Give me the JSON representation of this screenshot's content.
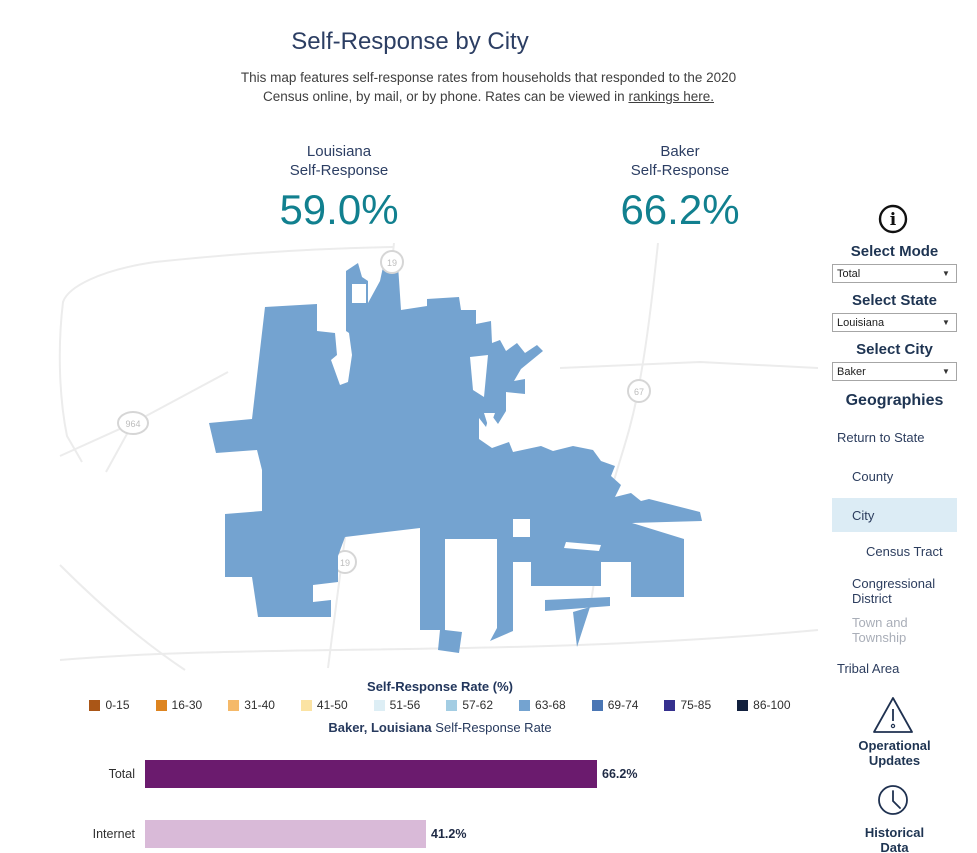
{
  "header": {
    "title": "Self-Response by City",
    "subtitle_line1": "This map features self-response rates from households that responded to the 2020",
    "subtitle_line2": "Census online, by mail, or by phone. Rates can be viewed in",
    "link_text": "rankings here."
  },
  "stats": {
    "left": {
      "region": "Louisiana",
      "label": "Self-Response",
      "value": "59.0%"
    },
    "right": {
      "region": "Baker",
      "label": "Self-Response",
      "value": "66.2%"
    }
  },
  "map": {
    "fill_color": "#74a3d0",
    "badges": [
      {
        "label": "19"
      },
      {
        "label": "67"
      },
      {
        "label": "964"
      },
      {
        "label": "19"
      }
    ]
  },
  "sidebar": {
    "info_icon": "i",
    "select_mode_label": "Select Mode",
    "mode_value": "Total",
    "select_state_label": "Select State",
    "state_value": "Louisiana",
    "select_city_label": "Select City",
    "city_value": "Baker",
    "geographies_label": "Geographies",
    "items": [
      {
        "label": "Return to State"
      },
      {
        "label": "County"
      },
      {
        "label": "City"
      },
      {
        "label": "Census Tract"
      },
      {
        "label": "Congressional District"
      },
      {
        "label": "Town and Township"
      },
      {
        "label": "Tribal Area"
      }
    ],
    "operational_line1": "Operational",
    "operational_line2": "Updates",
    "historical_line1": "Historical",
    "historical_line2": "Data"
  },
  "legend": {
    "title": "Self-Response Rate (%)",
    "items": [
      {
        "range": "0-15",
        "color": "#aa5617"
      },
      {
        "range": "16-30",
        "color": "#dd8420"
      },
      {
        "range": "31-40",
        "color": "#f5b969"
      },
      {
        "range": "41-50",
        "color": "#fbe3a3"
      },
      {
        "range": "51-56",
        "color": "#ddeef5"
      },
      {
        "range": "57-62",
        "color": "#a3cde3"
      },
      {
        "range": "63-68",
        "color": "#74a3d0"
      },
      {
        "range": "69-74",
        "color": "#4a76b4"
      },
      {
        "range": "75-85",
        "color": "#35308e"
      },
      {
        "range": "86-100",
        "color": "#12203e"
      }
    ]
  },
  "caption": {
    "bold": "Baker, Louisiana",
    "rest": "Self-Response Rate"
  },
  "chart_data": {
    "type": "bar",
    "orientation": "horizontal",
    "categories": [
      "Total",
      "Internet"
    ],
    "values": [
      66.2,
      41.2
    ],
    "value_labels": [
      "66.2%",
      "41.2%"
    ],
    "colors": [
      "#6b1b6e",
      "#d9bad8"
    ],
    "xlim": [
      0,
      100
    ],
    "title": "Baker, Louisiana Self-Response Rate"
  }
}
